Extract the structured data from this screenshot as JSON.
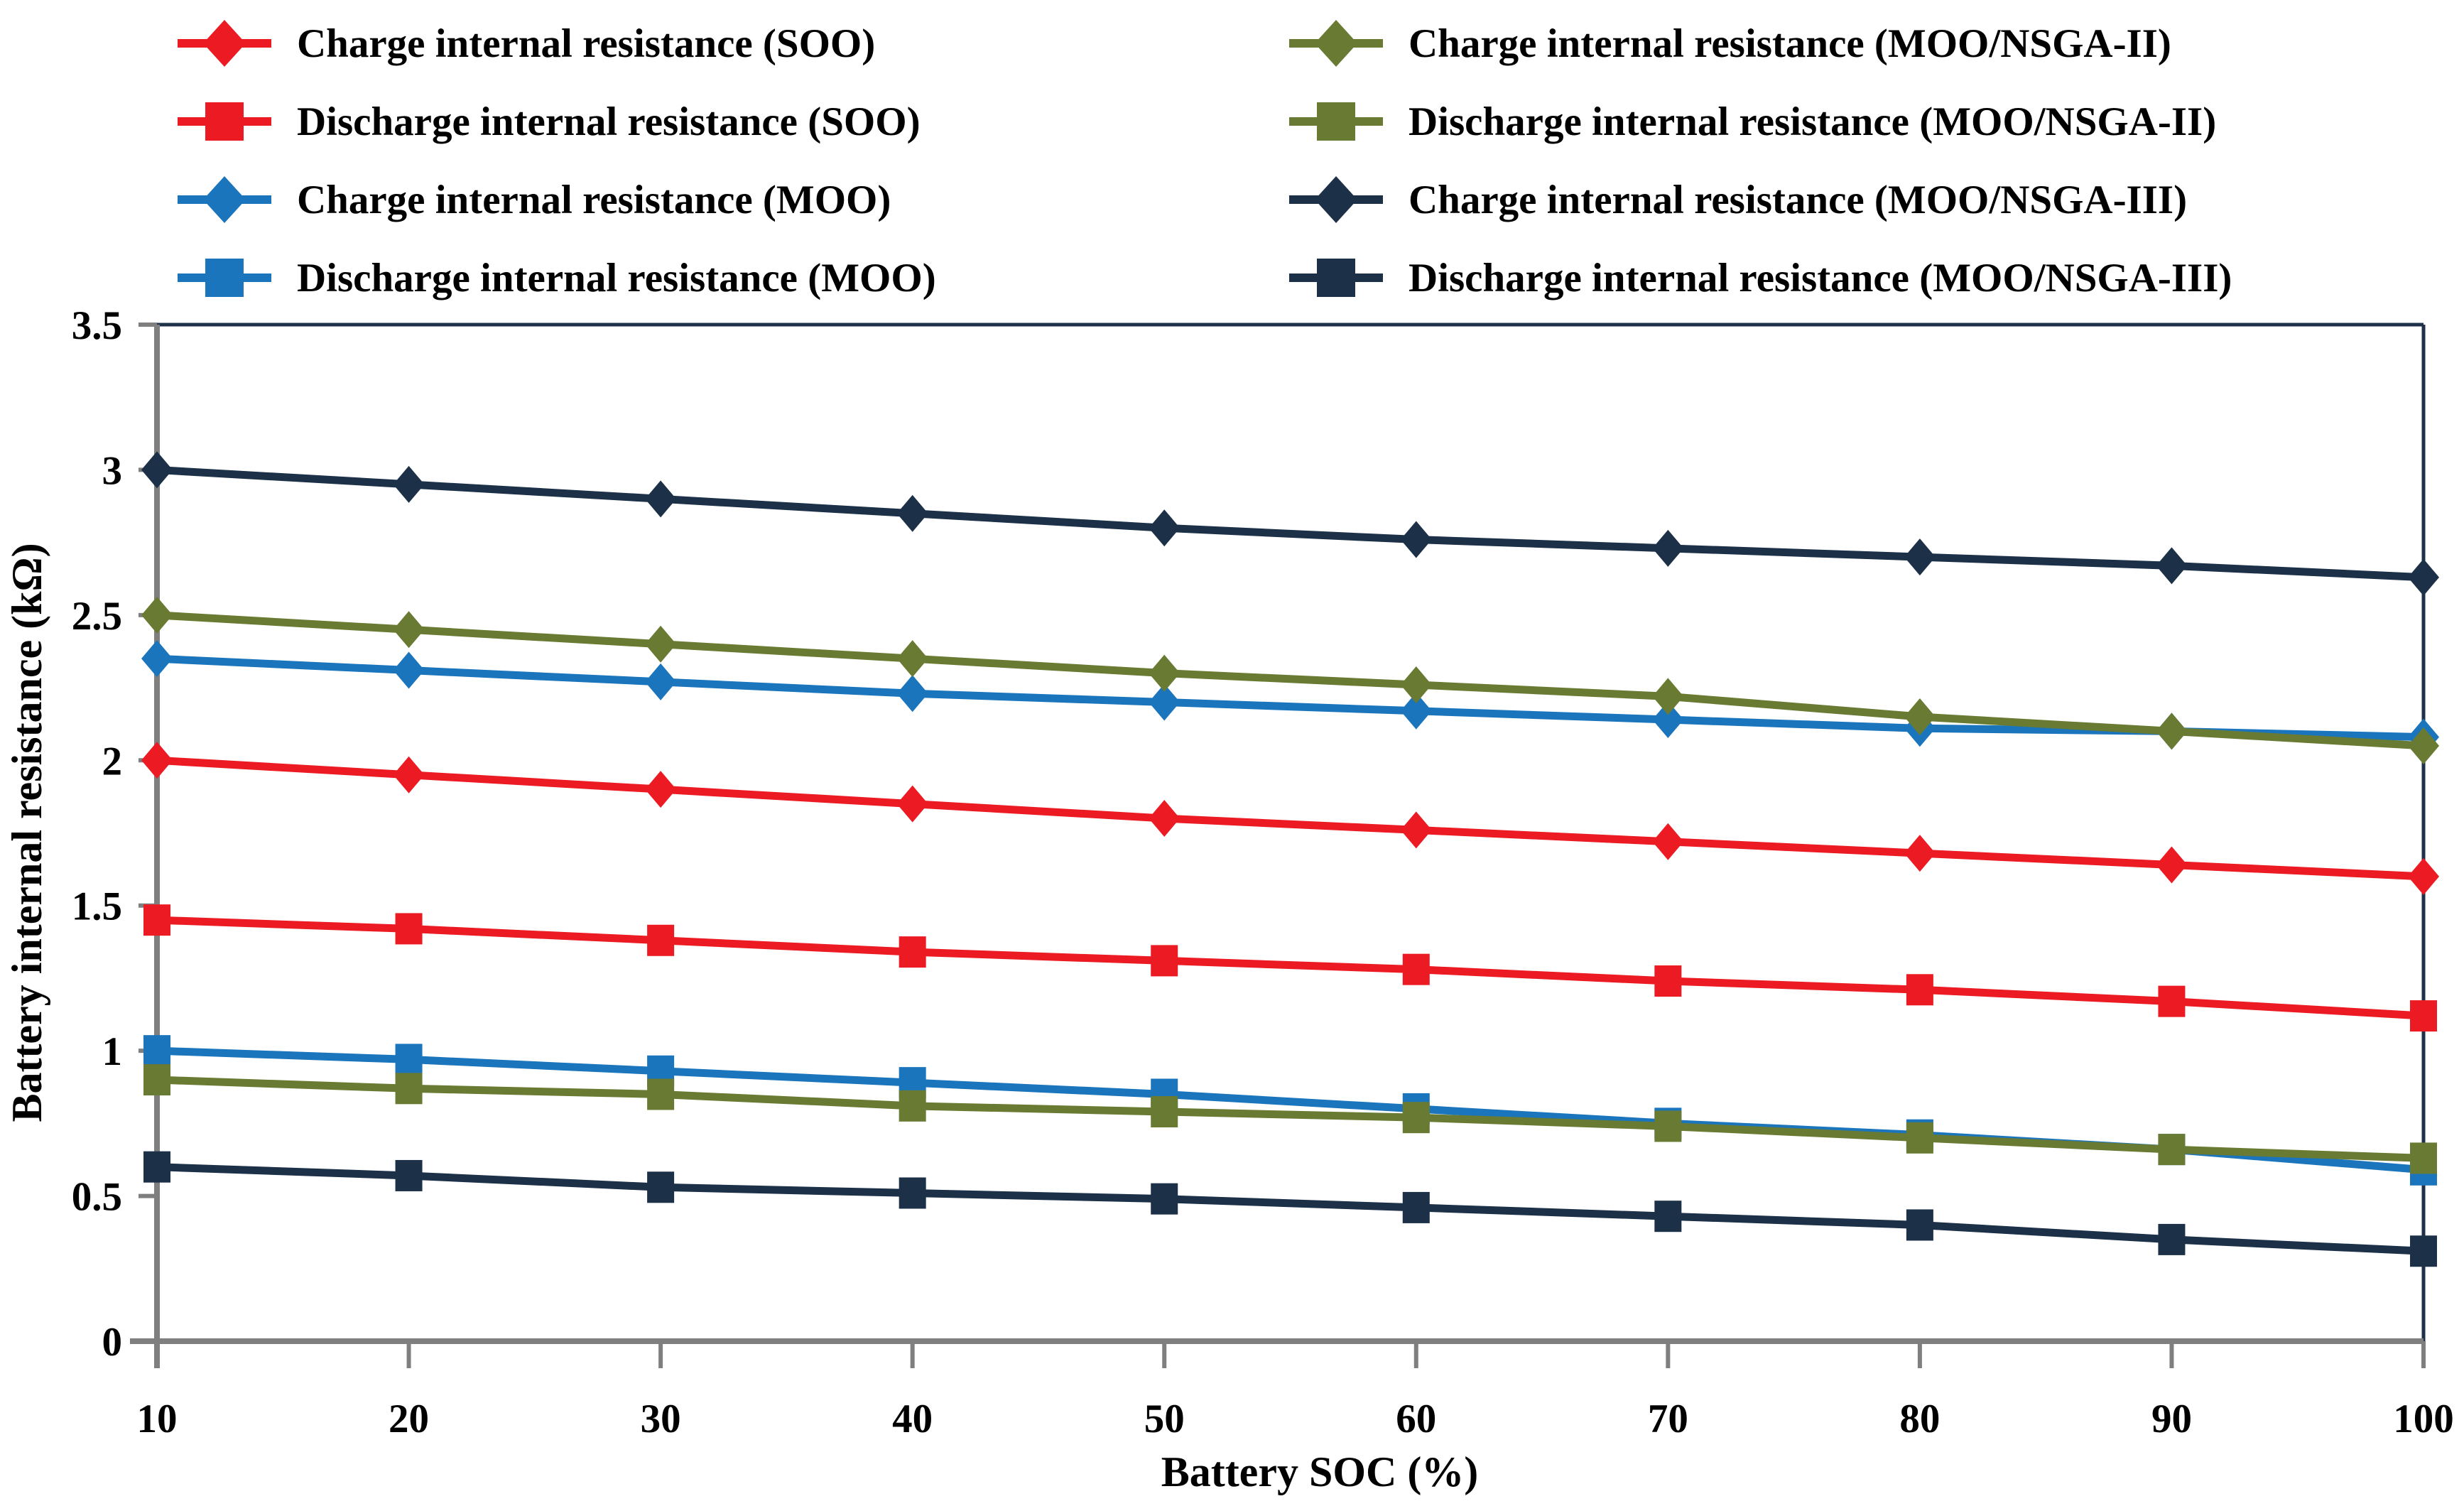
{
  "chart_data": {
    "type": "line",
    "title": "",
    "xlabel": "Battery SOC (%)",
    "ylabel": "Battery internal resistance (kΩ)",
    "xlim": [
      10,
      100
    ],
    "ylim": [
      0,
      3.5
    ],
    "xticks": [
      10,
      20,
      30,
      40,
      50,
      60,
      70,
      80,
      90,
      100
    ],
    "yticks": [
      0,
      0.5,
      1,
      1.5,
      2,
      2.5,
      3,
      3.5
    ],
    "grid": false,
    "legend_position": "top-two-columns",
    "x": [
      10,
      20,
      30,
      40,
      50,
      60,
      70,
      80,
      90,
      100
    ],
    "series": [
      {
        "id": "charge-soo",
        "label": "Charge internal resistance (SOO)",
        "color": "#EC1B23",
        "marker": "diamond",
        "legend_column": "left",
        "values": [
          2.0,
          1.95,
          1.9,
          1.85,
          1.8,
          1.76,
          1.72,
          1.68,
          1.64,
          1.6
        ]
      },
      {
        "id": "discharge-soo",
        "label": "Discharge internal resistance (SOO)",
        "color": "#EC1B23",
        "marker": "square",
        "legend_column": "left",
        "values": [
          1.45,
          1.42,
          1.38,
          1.34,
          1.31,
          1.28,
          1.24,
          1.21,
          1.17,
          1.12
        ]
      },
      {
        "id": "charge-moo",
        "label": "Charge internal resistance (MOO)",
        "color": "#1B75BC",
        "marker": "diamond",
        "legend_column": "left",
        "values": [
          2.35,
          2.31,
          2.27,
          2.23,
          2.2,
          2.17,
          2.14,
          2.11,
          2.1,
          2.08
        ]
      },
      {
        "id": "discharge-moo",
        "label": "Discharge internal resistance (MOO)",
        "color": "#1B75BC",
        "marker": "square",
        "legend_column": "left",
        "values": [
          1.0,
          0.97,
          0.93,
          0.89,
          0.85,
          0.8,
          0.75,
          0.71,
          0.66,
          0.59
        ]
      },
      {
        "id": "charge-nsga2",
        "label": "Charge internal resistance (MOO/NSGA-II)",
        "color": "#697B32",
        "marker": "diamond",
        "legend_column": "right",
        "values": [
          2.5,
          2.45,
          2.4,
          2.35,
          2.3,
          2.26,
          2.22,
          2.15,
          2.1,
          2.05
        ]
      },
      {
        "id": "discharge-nsga2",
        "label": "Discharge internal resistance (MOO/NSGA-II)",
        "color": "#697B32",
        "marker": "square",
        "legend_column": "right",
        "values": [
          0.9,
          0.87,
          0.85,
          0.81,
          0.79,
          0.77,
          0.74,
          0.7,
          0.66,
          0.63
        ]
      },
      {
        "id": "charge-nsga3",
        "label": "Charge internal resistance (MOO/NSGA-III)",
        "color": "#1C3048",
        "marker": "diamond",
        "legend_column": "right",
        "values": [
          3.0,
          2.95,
          2.9,
          2.85,
          2.8,
          2.76,
          2.73,
          2.7,
          2.67,
          2.63
        ]
      },
      {
        "id": "discharge-nsga3",
        "label": "Discharge internal resistance (MOO/NSGA-III)",
        "color": "#1C3048",
        "marker": "square",
        "legend_column": "right",
        "values": [
          0.6,
          0.57,
          0.53,
          0.51,
          0.49,
          0.46,
          0.43,
          0.4,
          0.35,
          0.31
        ]
      }
    ],
    "axis_color": "#7F7F7F",
    "border_color": "#1F3148",
    "text_color": "#000000",
    "background_color": "#FFFFFF"
  }
}
